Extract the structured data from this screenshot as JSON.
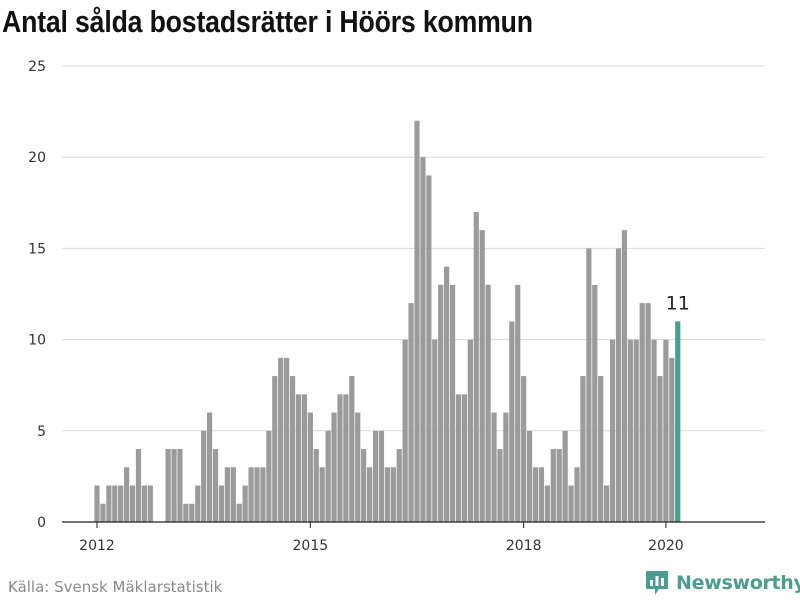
{
  "title": "Antal sålda bostadsrätter i Höörs kommun",
  "source": "Källa: Svensk Mäklarstatistik",
  "brand": {
    "name": "Newsworthy",
    "icon": "newsworthy-logo-icon",
    "color": "#4a9d8f"
  },
  "colors": {
    "bar": "#9b9b9b",
    "highlight": "#4a9d8f",
    "grid": "#d9d9d9",
    "axis": "#222222"
  },
  "chart_data": {
    "type": "bar",
    "title": "Antal sålda bostadsrätter i Höörs kommun",
    "xlabel": "",
    "ylabel": "",
    "ylim": [
      0,
      25
    ],
    "yticks": [
      0,
      5,
      10,
      15,
      20,
      25
    ],
    "grid": true,
    "xtick_labels": [
      "2012",
      "2015",
      "2018",
      "2020"
    ],
    "start_month": "2012-01",
    "values": [
      2,
      1,
      2,
      2,
      2,
      3,
      2,
      4,
      2,
      2,
      0,
      0,
      4,
      4,
      4,
      1,
      1,
      2,
      5,
      6,
      4,
      2,
      3,
      3,
      1,
      2,
      3,
      3,
      3,
      5,
      8,
      9,
      9,
      8,
      7,
      7,
      6,
      4,
      3,
      5,
      6,
      7,
      7,
      8,
      6,
      4,
      3,
      5,
      5,
      3,
      3,
      4,
      10,
      12,
      22,
      20,
      19,
      10,
      13,
      14,
      13,
      7,
      7,
      10,
      17,
      16,
      13,
      6,
      4,
      6,
      11,
      13,
      8,
      5,
      3,
      3,
      2,
      4,
      4,
      5,
      2,
      3,
      8,
      15,
      13,
      8,
      2,
      10,
      15,
      16,
      10,
      10,
      12,
      12,
      10,
      8,
      10,
      9,
      11
    ],
    "highlight_last": true,
    "last_value_label": "11"
  }
}
